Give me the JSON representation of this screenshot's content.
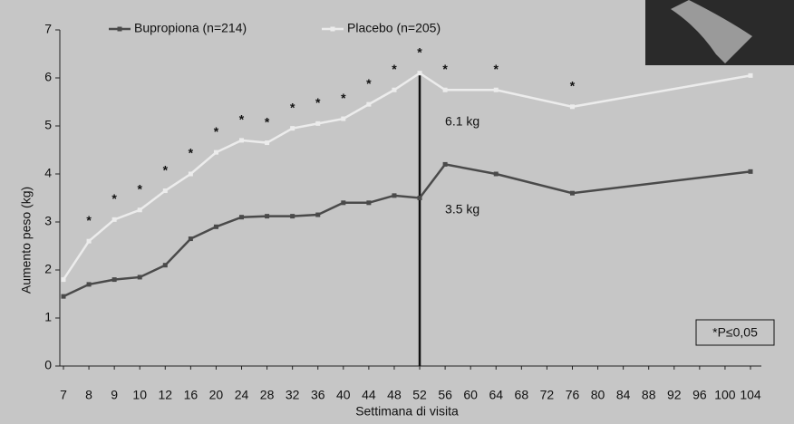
{
  "chart_data": {
    "type": "line",
    "y_label": "Aumento peso (kg)",
    "x_label": "Settimana di visita",
    "categories": [
      7,
      8,
      9,
      10,
      12,
      16,
      20,
      24,
      28,
      32,
      36,
      40,
      44,
      48,
      52,
      56,
      60,
      64,
      68,
      72,
      76,
      80,
      84,
      88,
      92,
      96,
      100,
      104
    ],
    "series": [
      {
        "name": "Bupropiona (n=214)",
        "color": "#4a4a4a",
        "x": [
          7,
          8,
          9,
          10,
          12,
          16,
          20,
          24,
          28,
          32,
          36,
          40,
          44,
          48,
          52,
          56,
          64,
          76,
          104
        ],
        "values": [
          1.45,
          1.7,
          1.8,
          1.85,
          2.1,
          2.65,
          2.9,
          3.1,
          3.12,
          3.12,
          3.15,
          3.4,
          3.4,
          3.55,
          3.5,
          4.2,
          4.0,
          3.6,
          4.05
        ]
      },
      {
        "name": "Placebo (n=205)",
        "color": "#ececec",
        "x": [
          7,
          8,
          9,
          10,
          12,
          16,
          20,
          24,
          28,
          32,
          36,
          40,
          44,
          48,
          52,
          56,
          64,
          76,
          104
        ],
        "values": [
          1.8,
          2.6,
          3.05,
          3.25,
          3.65,
          4.0,
          4.45,
          4.7,
          4.65,
          4.95,
          5.05,
          5.15,
          5.45,
          5.75,
          6.1,
          5.75,
          5.75,
          5.4,
          6.05
        ]
      }
    ],
    "significance_marker": "*",
    "significant_weeks": [
      8,
      9,
      10,
      12,
      16,
      20,
      24,
      28,
      32,
      36,
      40,
      44,
      48,
      52,
      56,
      64,
      76
    ],
    "annotations": [
      "6.1 kg",
      "3.5 kg"
    ],
    "note": "*P≤0,05",
    "ylim": [
      0,
      7
    ],
    "yticks": [
      0,
      1,
      2,
      3,
      4,
      5,
      6,
      7
    ]
  }
}
